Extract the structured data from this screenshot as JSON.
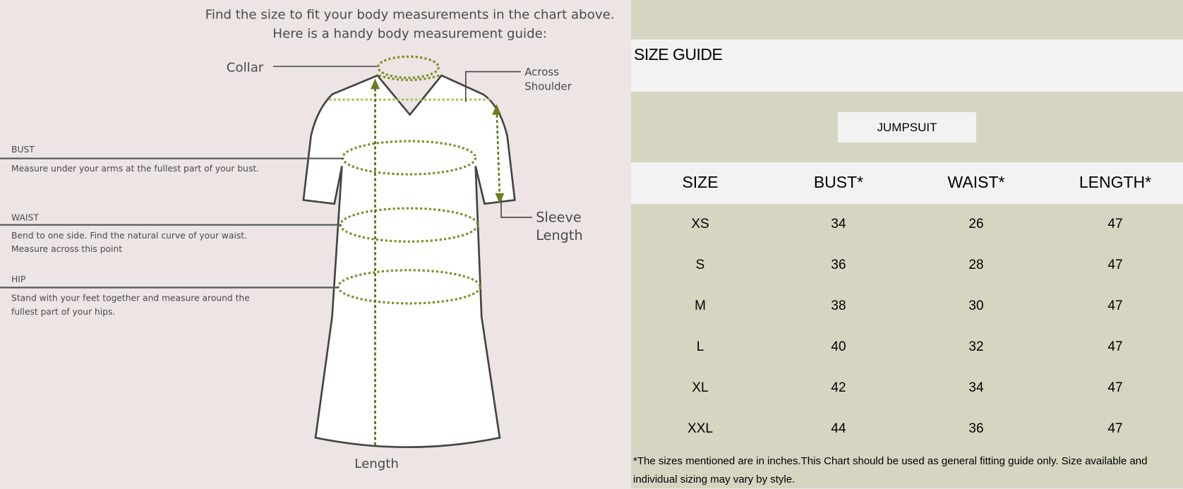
{
  "guide": {
    "intro_line1": "Find the size to fit your body measurements in the chart above.",
    "intro_line2": "Here is a handy body measurement guide:",
    "collar": "Collar",
    "across_shoulder_1": "Across",
    "across_shoulder_2": "Shoulder",
    "sleeve_length_1": "Sleeve",
    "sleeve_length_2": "Length",
    "length": "Length",
    "bust": {
      "label": "BUST",
      "desc1": "Measure under your arms at the fullest part of your bust.",
      "desc2": ""
    },
    "waist": {
      "label": "WAIST",
      "desc1": "Bend to one side. Find the natural curve of your waist.",
      "desc2": "Measure across this point"
    },
    "hip": {
      "label": "HIP",
      "desc1": "Stand with your feet together and measure around the",
      "desc2": "fullest part of your hips."
    },
    "colors": {
      "background": "#ece5e3",
      "measure_line": "#6b7a1f",
      "outline": "#444444"
    }
  },
  "chart": {
    "title": "SIZE GUIDE",
    "category": "JUMPSUIT",
    "headers": [
      "SIZE",
      "BUST*",
      "WAIST*",
      "LENGTH*"
    ],
    "rows": [
      [
        "XS",
        "34",
        "26",
        "47"
      ],
      [
        "S",
        "36",
        "28",
        "47"
      ],
      [
        "M",
        "38",
        "30",
        "47"
      ],
      [
        "L",
        "40",
        "32",
        "47"
      ],
      [
        "XL",
        "42",
        "34",
        "47"
      ],
      [
        "XXL",
        "44",
        "36",
        "47"
      ]
    ],
    "footnote": "*The sizes mentioned are in inches.This Chart should be used as general fitting guide only. Size available and individual sizing may vary by style.",
    "colors": {
      "background": "#d6d5c2",
      "band": "#f2f2f2"
    }
  }
}
